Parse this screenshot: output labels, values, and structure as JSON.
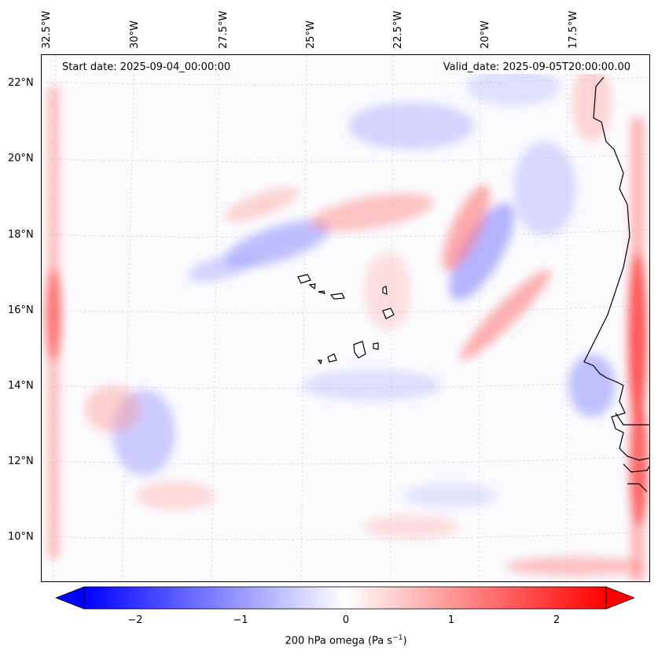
{
  "map": {
    "longitude_labels": [
      "32.5°W",
      "30°W",
      "27.5°W",
      "25°W",
      "22.5°W",
      "20°W",
      "17.5°W"
    ],
    "latitude_labels": [
      "22°N",
      "20°N",
      "18°N",
      "16°N",
      "14°N",
      "12°N",
      "10°N"
    ],
    "start_date": "Start date: 2025-09-04_00:00:00",
    "valid_date": "Valid_date: 2025-09-05T20:00:00.00"
  },
  "colorbar": {
    "ticks": [
      "−2",
      "−1",
      "0",
      "1",
      "2"
    ],
    "label_prefix": "200 hPa omega (Pa s",
    "label_exponent": "−1",
    "label_suffix": ")",
    "min_color": "#0000ff",
    "mid_color": "#ffffff",
    "max_color": "#ff0000"
  }
}
